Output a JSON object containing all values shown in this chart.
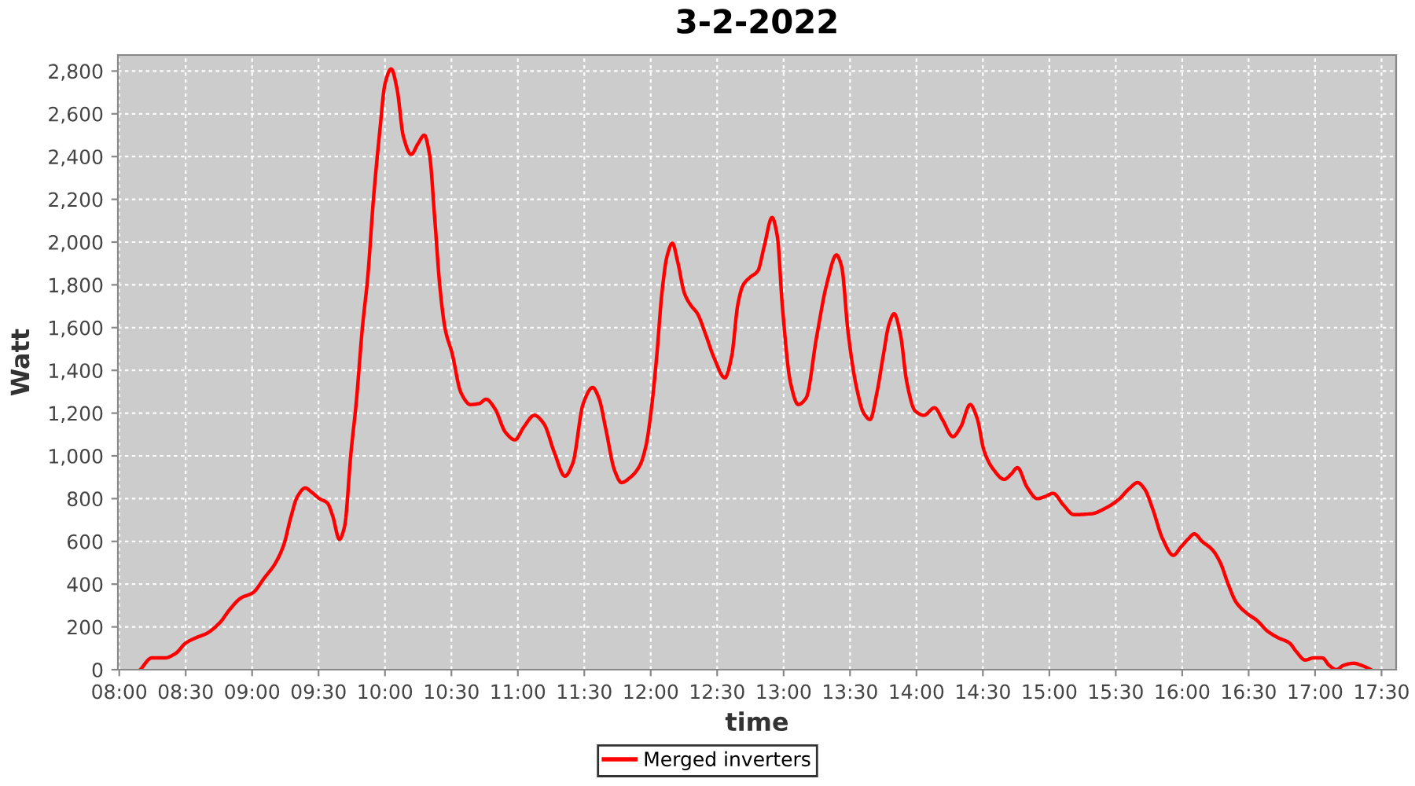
{
  "chart_data": {
    "type": "line",
    "title": "3-2-2022",
    "xlabel": "time",
    "ylabel": "Watt",
    "xlim": [
      7.99,
      17.61
    ],
    "ylim": [
      0,
      2875
    ],
    "xticks": [
      {
        "value": 8,
        "label": "08:00"
      },
      {
        "value": 8.5,
        "label": "08:30"
      },
      {
        "value": 9,
        "label": "09:00"
      },
      {
        "value": 9.5,
        "label": "09:30"
      },
      {
        "value": 10,
        "label": "10:00"
      },
      {
        "value": 10.5,
        "label": "10:30"
      },
      {
        "value": 11,
        "label": "11:00"
      },
      {
        "value": 11.5,
        "label": "11:30"
      },
      {
        "value": 12,
        "label": "12:00"
      },
      {
        "value": 12.5,
        "label": "12:30"
      },
      {
        "value": 13,
        "label": "13:00"
      },
      {
        "value": 13.5,
        "label": "13:30"
      },
      {
        "value": 14,
        "label": "14:00"
      },
      {
        "value": 14.5,
        "label": "14:30"
      },
      {
        "value": 15,
        "label": "15:00"
      },
      {
        "value": 15.5,
        "label": "15:30"
      },
      {
        "value": 16,
        "label": "16:00"
      },
      {
        "value": 16.5,
        "label": "16:30"
      },
      {
        "value": 17,
        "label": "17:00"
      },
      {
        "value": 17.5,
        "label": "17:30"
      }
    ],
    "yticks": [
      0,
      200,
      400,
      600,
      800,
      {
        "value": 1000,
        "label": "1,000"
      },
      {
        "value": 1200,
        "label": "1,200"
      },
      {
        "value": 1400,
        "label": "1,400"
      },
      {
        "value": 1600,
        "label": "1,600"
      },
      {
        "value": 1800,
        "label": "1,800"
      },
      {
        "value": 2000,
        "label": "2,000"
      },
      {
        "value": 2200,
        "label": "2,200"
      },
      {
        "value": 2400,
        "label": "2,400"
      },
      {
        "value": 2600,
        "label": "2,600"
      },
      {
        "value": 2800,
        "label": "2,800"
      }
    ],
    "grid": true,
    "legend": "bottom",
    "line_style": "solid",
    "series": [
      {
        "name": "Merged inverters",
        "color": "#ff0000",
        "x": [
          8.158,
          8.245,
          8.343,
          8.422,
          8.501,
          8.58,
          8.659,
          8.757,
          8.836,
          8.915,
          9.006,
          9.093,
          9.172,
          9.239,
          9.29,
          9.341,
          9.4,
          9.448,
          9.507,
          9.566,
          9.606,
          9.657,
          9.696,
          9.744,
          9.783,
          9.83,
          9.87,
          9.913,
          9.961,
          10.0,
          10.047,
          10.091,
          10.138,
          10.197,
          10.248,
          10.296,
          10.335,
          10.375,
          10.414,
          10.454,
          10.505,
          10.572,
          10.643,
          10.71,
          10.761,
          10.828,
          10.907,
          10.978,
          11.045,
          11.124,
          11.196,
          11.275,
          11.354,
          11.413,
          11.492,
          11.563,
          11.61,
          11.662,
          11.729,
          11.78,
          11.847,
          11.918,
          11.965,
          12.005,
          12.045,
          12.084,
          12.123,
          12.163,
          12.202,
          12.254,
          12.301,
          12.352,
          12.412,
          12.479,
          12.558,
          12.609,
          12.656,
          12.696,
          12.747,
          12.806,
          12.854,
          12.913,
          12.952,
          12.992,
          13.051,
          13.11,
          13.169,
          13.248,
          13.327,
          13.398,
          13.437,
          13.485,
          13.544,
          13.603,
          13.651,
          13.702,
          13.749,
          13.793,
          13.832,
          13.88,
          13.927,
          13.99,
          14.057,
          14.136,
          14.195,
          14.274,
          14.333,
          14.404,
          14.457,
          14.508,
          14.575,
          14.661,
          14.713,
          14.76,
          14.831,
          14.909,
          14.969,
          15.028,
          15.106,
          15.185,
          15.323,
          15.421,
          15.52,
          15.598,
          15.665,
          15.717,
          15.776,
          15.854,
          15.933,
          15.992,
          16.043,
          16.091,
          16.15,
          16.228,
          16.287,
          16.346,
          16.406,
          16.484,
          16.563,
          16.642,
          16.72,
          16.807,
          16.858,
          16.925,
          16.988,
          17.055,
          17.106,
          17.161,
          17.213,
          17.291,
          17.35,
          17.421
        ],
        "values": [
          0,
          55,
          55,
          75,
          125,
          150,
          170,
          220,
          285,
          335,
          360,
          430,
          495,
          585,
          710,
          810,
          850,
          830,
          800,
          780,
          720,
          610,
          670,
          1015,
          1245,
          1600,
          1835,
          2200,
          2520,
          2740,
          2810,
          2715,
          2495,
          2410,
          2460,
          2500,
          2410,
          2105,
          1785,
          1590,
          1480,
          1295,
          1240,
          1245,
          1265,
          1220,
          1110,
          1075,
          1135,
          1190,
          1150,
          1015,
          905,
          965,
          1245,
          1320,
          1270,
          1125,
          930,
          875,
          900,
          955,
          1050,
          1220,
          1465,
          1760,
          1935,
          1995,
          1910,
          1760,
          1705,
          1665,
          1570,
          1455,
          1365,
          1465,
          1710,
          1800,
          1835,
          1865,
          1980,
          2115,
          2030,
          1690,
          1345,
          1240,
          1270,
          1555,
          1810,
          1940,
          1885,
          1580,
          1335,
          1200,
          1170,
          1295,
          1465,
          1615,
          1665,
          1565,
          1345,
          1210,
          1190,
          1225,
          1170,
          1090,
          1135,
          1240,
          1175,
          1025,
          940,
          890,
          915,
          945,
          855,
          800,
          810,
          825,
          770,
          725,
          730,
          755,
          795,
          845,
          875,
          845,
          755,
          610,
          535,
          575,
          610,
          635,
          600,
          560,
          500,
          400,
          315,
          265,
          230,
          180,
          150,
          125,
          85,
          45,
          55,
          55,
          20,
          0,
          20,
          30,
          20,
          0
        ]
      }
    ]
  }
}
